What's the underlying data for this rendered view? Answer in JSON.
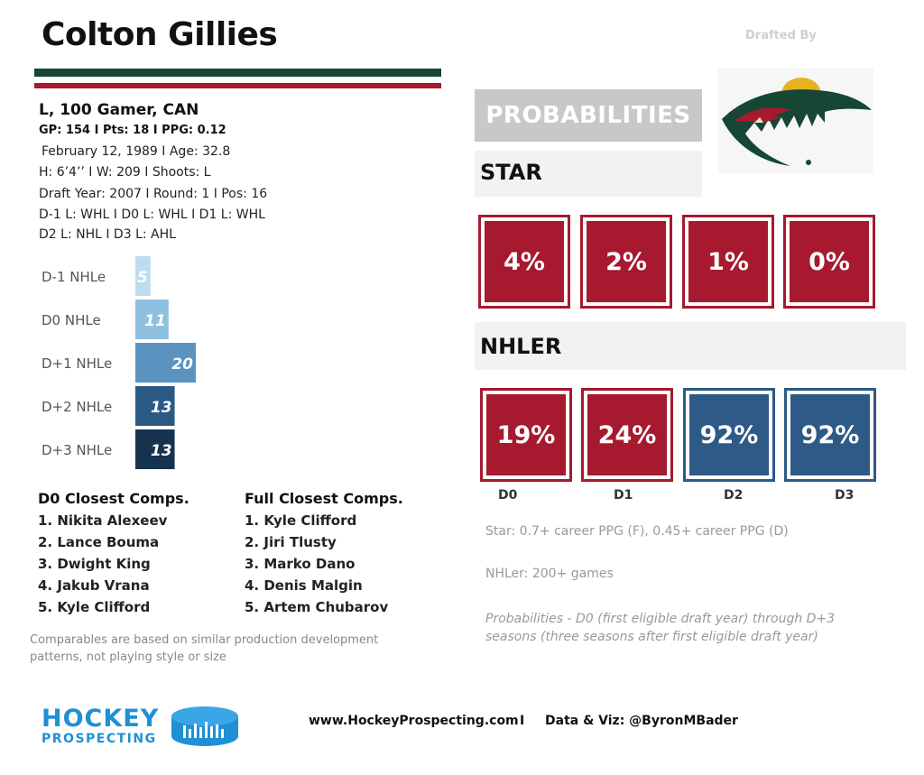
{
  "player": {
    "name": "Colton Gillies",
    "drafted_by_label": "Drafted By",
    "team_logo_icon": "minnesota-wild-logo",
    "summary": "L, 100 Gamer, CAN",
    "stats": "GP: 154 I Pts: 18 I PPG: 0.12",
    "birth": "February 12, 1989 I Age: 32.8",
    "physical": "H: 6’4’’ I W: 209 I Shoots: L",
    "draft": "Draft Year: 2007 I Round: 1 I Pos: 16",
    "leagues_1": "D-1 L: WHL I D0 L: WHL I D1 L: WHL",
    "leagues_2": "D2 L: NHL I D3 L: AHL"
  },
  "colors": {
    "stripe_green": "#154734",
    "stripe_red": "#a6192e",
    "box_red": "#a6192e",
    "box_blue": "#2d5a87",
    "brand_blue": "#1e90d6"
  },
  "chart_data": {
    "type": "bar",
    "orientation": "horizontal",
    "categories": [
      "D-1 NHLe",
      "D0 NHLe",
      "D+1 NHLe",
      "D+2 NHLe",
      "D+3 NHLe"
    ],
    "values": [
      5,
      11,
      20,
      13,
      13
    ],
    "data_labels": [
      "5",
      "11",
      "20",
      "13",
      "13"
    ],
    "bar_colors": [
      "#bcdcef",
      "#8fc0e0",
      "#5b93c0",
      "#2a5a84",
      "#16324f"
    ],
    "title": "",
    "xlabel": "",
    "ylabel": ""
  },
  "comps": {
    "d0_title": "D0 Closest Comps.",
    "d0": [
      "1. Nikita Alexeev",
      "2. Lance Bouma",
      "3. Dwight King",
      "4. Jakub Vrana",
      "5. Kyle Clifford"
    ],
    "full_title": "Full Closest Comps.",
    "full": [
      "1. Kyle Clifford",
      "2. Jiri Tlusty",
      "3. Marko Dano",
      "4. Denis Malgin",
      "5. Artem Chubarov"
    ],
    "footnote": "Comparables are based on similar production development patterns, not playing style or size"
  },
  "probabilities": {
    "header": "PROBABILITIES",
    "star_label": "STAR",
    "nhler_label": "NHLER",
    "star": [
      {
        "value": "4%",
        "style": "red"
      },
      {
        "value": "2%",
        "style": "red"
      },
      {
        "value": "1%",
        "style": "red"
      },
      {
        "value": "0%",
        "style": "red"
      }
    ],
    "nhler": [
      {
        "value": "19%",
        "style": "red"
      },
      {
        "value": "24%",
        "style": "red"
      },
      {
        "value": "92%",
        "style": "blue"
      },
      {
        "value": "92%",
        "style": "blue"
      }
    ],
    "years": [
      "D0",
      "D1",
      "D2",
      "D3"
    ],
    "star_note": "Star: 0.7+ career PPG (F), 0.45+ career PPG (D)",
    "nhler_note": "NHLer: 200+ games",
    "period_note": "Probabilities - D0 (first eligible draft year) through D+3 seasons (three seasons after first eligible draft year)"
  },
  "footer": {
    "brand_top": "HOCKEY",
    "brand_bottom": "PROSPECTING",
    "puck_icon": "hockey-puck-chart-icon",
    "website": "www.HockeyProspecting.com",
    "separator": "I",
    "credit": "Data & Viz: @ByronMBader"
  }
}
